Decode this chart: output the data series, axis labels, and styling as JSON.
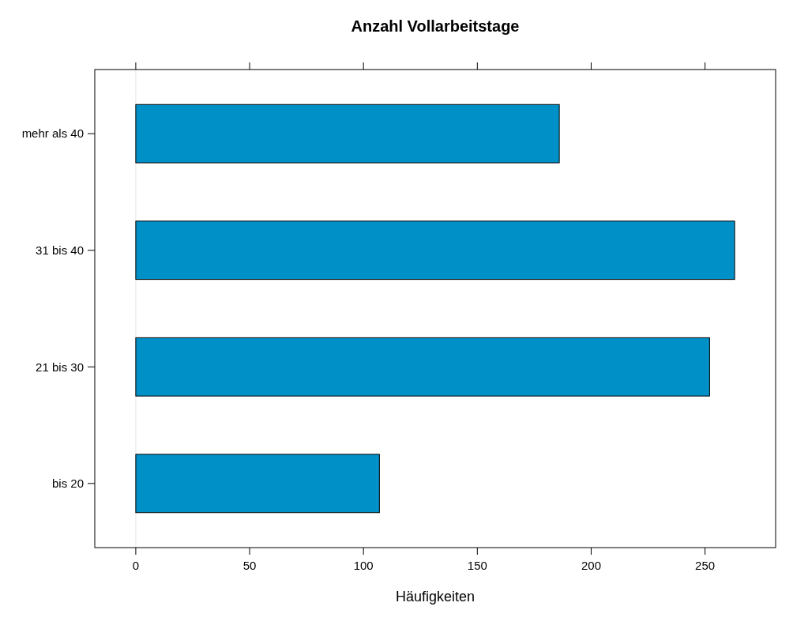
{
  "chart_data": {
    "type": "bar",
    "orientation": "horizontal",
    "title": "Anzahl Vollarbeitstage",
    "xlabel": "Häufigkeiten",
    "categories": [
      "mehr als 40",
      "31 bis 40",
      "21 bis 30",
      "bis 20"
    ],
    "values": [
      186,
      263,
      252,
      107
    ],
    "color": "#0090c8",
    "xlim": [
      -18,
      281
    ],
    "xticks": [
      0,
      50,
      100,
      150,
      200,
      250
    ],
    "ref_lines": [
      {
        "axis": "x",
        "value": 0,
        "color": "#e6e6e6"
      }
    ],
    "grid": false
  }
}
